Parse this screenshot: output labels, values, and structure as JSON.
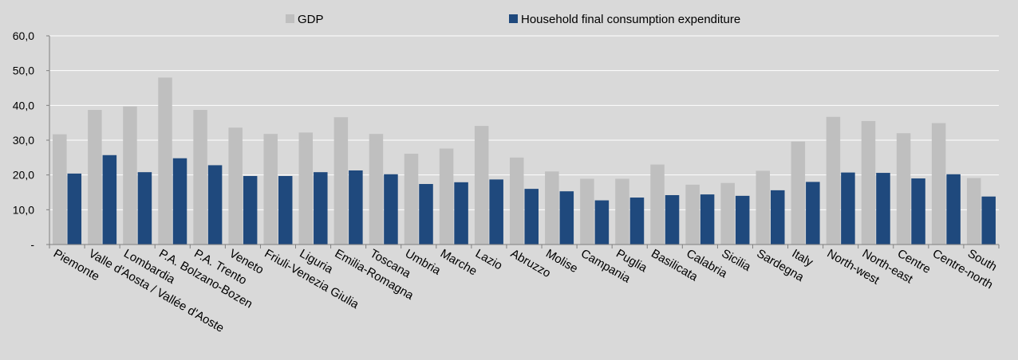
{
  "chart_data": {
    "type": "bar",
    "categories": [
      "Piemonte",
      "Valle d'Aosta / Vallée d'Aoste",
      "Lombardia",
      "P.A. Bolzano-Bozen",
      "P.A. Trento",
      "Veneto",
      "Friuli-Venezia Giulia",
      "Liguria",
      "Emilia-Romagna",
      "Toscana",
      "Umbria",
      "Marche",
      "Lazio",
      "Abruzzo",
      "Molise",
      "Campania",
      "Puglia",
      "Basilicata",
      "Calabria",
      "Sicilia",
      "Sardegna",
      "Italy",
      "North-west",
      "North-east",
      "Centre",
      "Centre-north",
      "South"
    ],
    "series": [
      {
        "name": "GDP",
        "color": "#bfbfbf",
        "values": [
          31.7,
          38.7,
          39.7,
          48.0,
          38.7,
          33.6,
          31.8,
          32.2,
          36.6,
          31.8,
          26.1,
          27.6,
          34.1,
          25.0,
          21.0,
          18.9,
          18.9,
          23.0,
          17.2,
          17.7,
          21.2,
          29.6,
          36.7,
          35.5,
          32.0,
          34.9,
          19.1
        ]
      },
      {
        "name": "Household final consumption expenditure",
        "color": "#1f497d",
        "values": [
          20.4,
          25.7,
          20.8,
          24.8,
          22.8,
          19.7,
          19.7,
          20.8,
          21.3,
          20.2,
          17.4,
          17.9,
          18.7,
          16.0,
          15.3,
          12.7,
          13.5,
          14.2,
          14.4,
          14.0,
          15.6,
          18.0,
          20.7,
          20.6,
          19.0,
          20.2,
          13.8
        ]
      }
    ],
    "ylim": [
      0,
      60
    ],
    "yticks": [
      0,
      10,
      20,
      30,
      40,
      50,
      60
    ],
    "ytick_labels": [
      "-",
      "10,0",
      "20,0",
      "30,0",
      "40,0",
      "50,0",
      "60,0"
    ],
    "grid": true,
    "legend_position": "top",
    "title": "",
    "xlabel": "",
    "ylabel": ""
  }
}
